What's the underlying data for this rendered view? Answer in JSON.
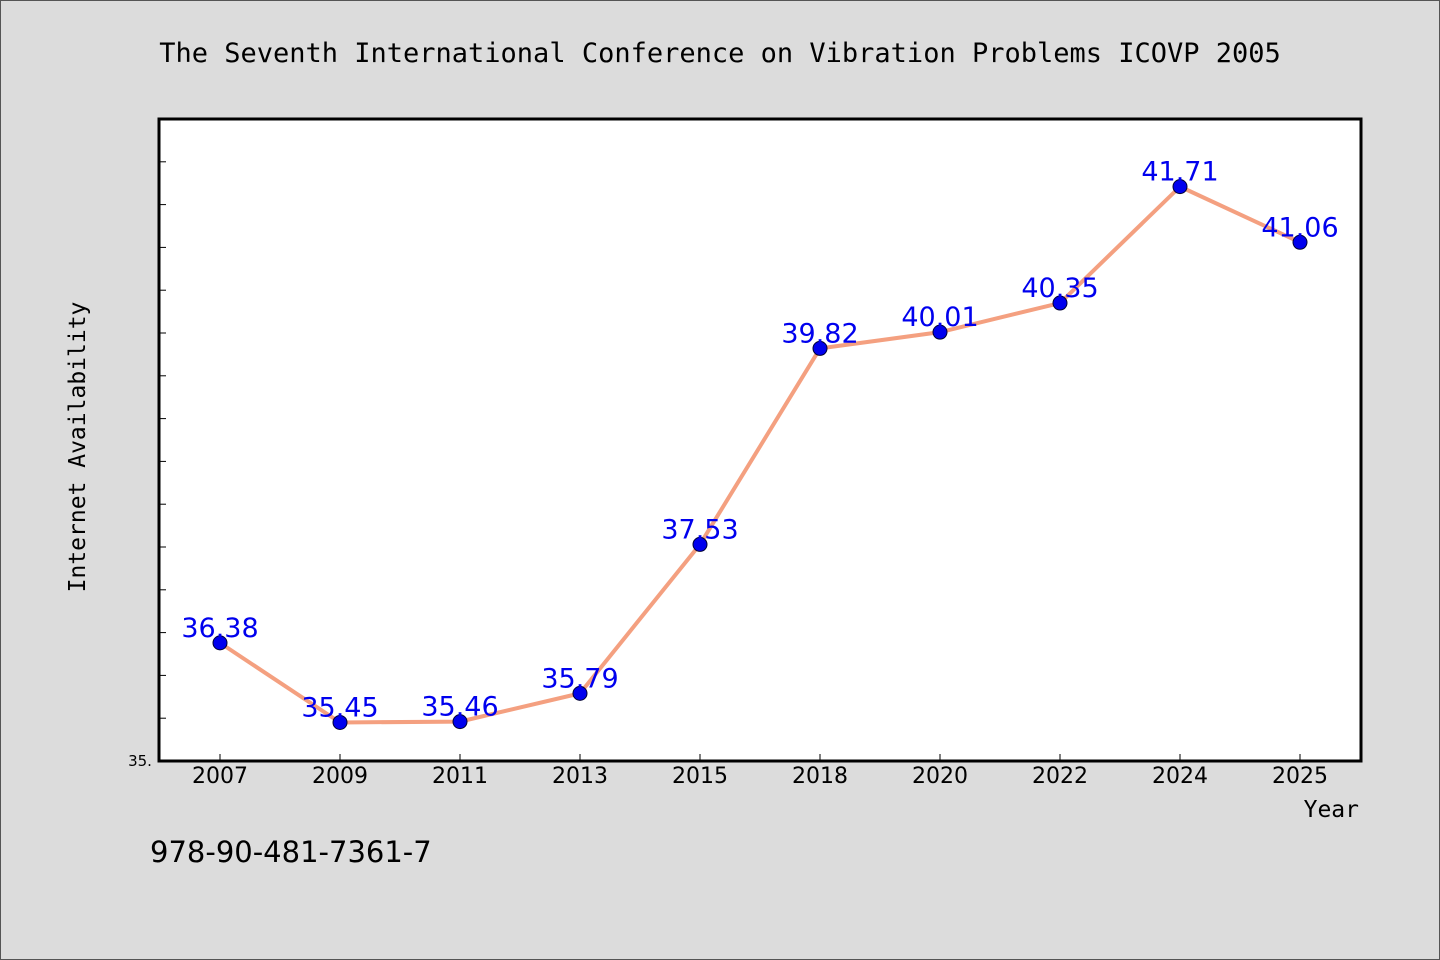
{
  "chart_data": {
    "type": "line",
    "title": "The Seventh International Conference on Vibration Problems ICOVP 2005",
    "xlabel": "Year",
    "ylabel": "Internet Availability",
    "categories": [
      "2007",
      "2009",
      "2011",
      "2013",
      "2015",
      "2018",
      "2020",
      "2022",
      "2024",
      "2025"
    ],
    "series": [
      {
        "values": [
          36.38,
          35.45,
          35.46,
          35.79,
          37.53,
          39.82,
          40.01,
          40.35,
          41.71,
          41.06
        ]
      }
    ],
    "data_labels": [
      "36.38",
      "35.45",
      "35.46",
      "35.79",
      "37.53",
      "39.82",
      "40.01",
      "40.35",
      "41.71",
      "41.06"
    ],
    "ylim": [
      35.0,
      42.5
    ],
    "y_tick_label": "35.",
    "grid": false,
    "line_color": "#f4a080",
    "marker_color": "#0000ee",
    "label_color": "#0000ee"
  },
  "footer": {
    "isbn": "978-90-481-7361-7"
  }
}
